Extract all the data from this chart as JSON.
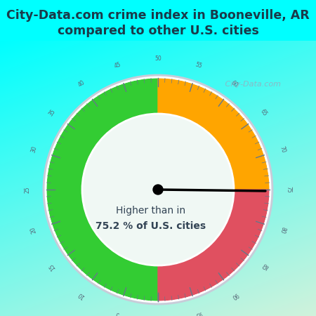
{
  "title_line1": "City-Data.com crime index in Booneville, AR",
  "title_line2": "compared to other U.S. cities",
  "title_bg": "#00FFFF",
  "title_color": "#1a3a4a",
  "gauge_bg_color": "#e8f5ee",
  "rim_outer_color": "#d8dde8",
  "rim_inner_color": "#e0e5ee",
  "green_color": "#33cc33",
  "orange_color": "#FFA500",
  "red_color": "#e05060",
  "inner_fill": "#f0f8f4",
  "needle_value": 75.2,
  "annotation_line1": "Higher than in",
  "annotation_line2": "75.2 % of U.S. cities",
  "tick_color": "#667788",
  "label_color": "#556677",
  "watermark_text": " City-Data.com",
  "watermark_color": "#99aabb"
}
